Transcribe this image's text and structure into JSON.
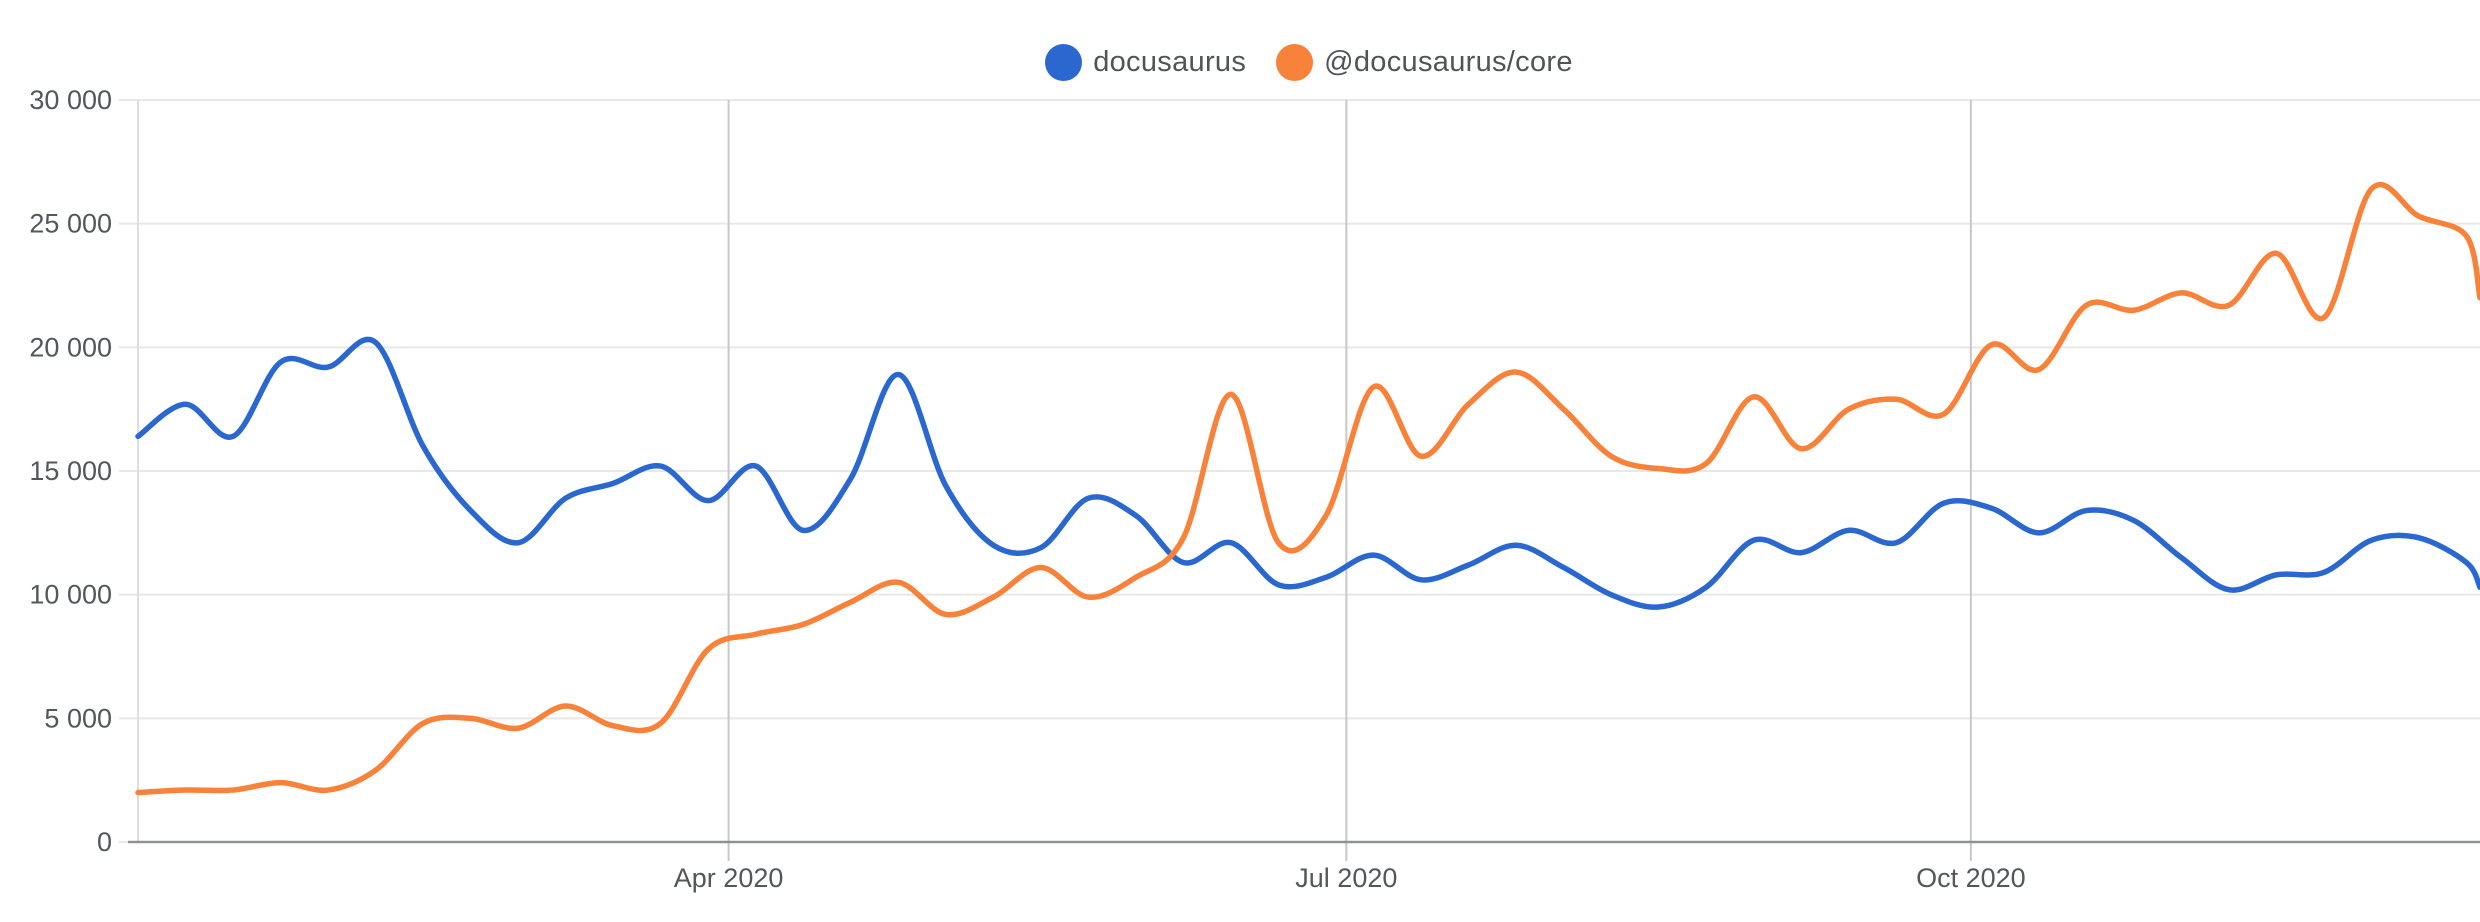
{
  "legend": {
    "items": [
      {
        "label": "docusaurus",
        "color": "#2a68d0"
      },
      {
        "label": "@docusaurus/core",
        "color": "#f8823a"
      }
    ]
  },
  "chart_data": {
    "type": "line",
    "title": "",
    "x_unit": "weekly downloads during 2020",
    "legend_position": "top-center",
    "grid": true,
    "ylim": [
      0,
      30000
    ],
    "x_domain_days": 345,
    "dates": [
      "2020-01-05",
      "2020-01-12",
      "2020-01-19",
      "2020-01-26",
      "2020-02-02",
      "2020-02-09",
      "2020-02-16",
      "2020-02-23",
      "2020-03-01",
      "2020-03-08",
      "2020-03-15",
      "2020-03-22",
      "2020-03-29",
      "2020-04-05",
      "2020-04-12",
      "2020-04-19",
      "2020-04-26",
      "2020-05-03",
      "2020-05-10",
      "2020-05-17",
      "2020-05-24",
      "2020-05-31",
      "2020-06-07",
      "2020-06-14",
      "2020-06-21",
      "2020-06-28",
      "2020-07-05",
      "2020-07-12",
      "2020-07-19",
      "2020-07-26",
      "2020-08-02",
      "2020-08-09",
      "2020-08-16",
      "2020-08-23",
      "2020-08-30",
      "2020-09-06",
      "2020-09-13",
      "2020-09-20",
      "2020-09-27",
      "2020-10-04",
      "2020-10-11",
      "2020-10-18",
      "2020-10-25",
      "2020-11-01",
      "2020-11-08",
      "2020-11-15",
      "2020-11-22",
      "2020-11-29",
      "2020-12-06",
      "2020-12-13",
      "2020-12-15"
    ],
    "days": [
      0,
      7,
      14,
      21,
      28,
      35,
      42,
      49,
      56,
      63,
      70,
      77,
      84,
      91,
      98,
      105,
      112,
      119,
      126,
      133,
      140,
      147,
      154,
      161,
      168,
      175,
      182,
      189,
      196,
      203,
      210,
      217,
      224,
      231,
      238,
      245,
      252,
      259,
      266,
      273,
      280,
      287,
      294,
      301,
      308,
      315,
      322,
      329,
      336,
      343,
      345
    ],
    "series": [
      {
        "name": "docusaurus",
        "color": "#2a68d0",
        "values": [
          16400,
          17700,
          16400,
          19400,
          19200,
          20200,
          16000,
          13400,
          12100,
          13900,
          14500,
          15200,
          13800,
          15200,
          12600,
          14700,
          18900,
          14400,
          12000,
          11900,
          13900,
          13200,
          11300,
          12100,
          10400,
          10700,
          11600,
          10600,
          11200,
          12000,
          11100,
          10000,
          9500,
          10300,
          12200,
          11700,
          12600,
          12100,
          13700,
          13500,
          12500,
          13400,
          13000,
          11500,
          10200,
          10800,
          10900,
          12200,
          12300,
          11300,
          10300
        ]
      },
      {
        "name": "@docusaurus/core",
        "color": "#f8823a",
        "values": [
          2000,
          2100,
          2100,
          2400,
          2100,
          2900,
          4800,
          5000,
          4600,
          5500,
          4700,
          4800,
          7800,
          8400,
          8800,
          9700,
          10500,
          9200,
          9900,
          11100,
          9900,
          10700,
          12300,
          18100,
          12100,
          13200,
          18400,
          15600,
          17700,
          19000,
          17500,
          15600,
          15100,
          15300,
          18000,
          15900,
          17500,
          17900,
          17300,
          20100,
          19100,
          21700,
          21500,
          22200,
          21700,
          23800,
          21200,
          26400,
          25300,
          24500,
          22000
        ]
      }
    ],
    "y_ticks": [
      {
        "value": 0,
        "label": "0"
      },
      {
        "value": 5000,
        "label": "5 000"
      },
      {
        "value": 10000,
        "label": "10 000"
      },
      {
        "value": 15000,
        "label": "15 000"
      },
      {
        "value": 20000,
        "label": "20 000"
      },
      {
        "value": 25000,
        "label": "25 000"
      },
      {
        "value": 30000,
        "label": "30 000"
      }
    ],
    "x_ticks": [
      {
        "day": 87,
        "label": "Apr 2020"
      },
      {
        "day": 178,
        "label": "Jul 2020"
      },
      {
        "day": 270,
        "label": "Oct 2020"
      }
    ],
    "style": {
      "grid_color": "#e8e8e8",
      "month_line_color": "#c8c8c8",
      "left_border_color": "#dedede",
      "axis_color": "#8f9294",
      "tick_color": "#c8c8c8",
      "label_color": "#54575a",
      "line_width": 5.5
    }
  }
}
